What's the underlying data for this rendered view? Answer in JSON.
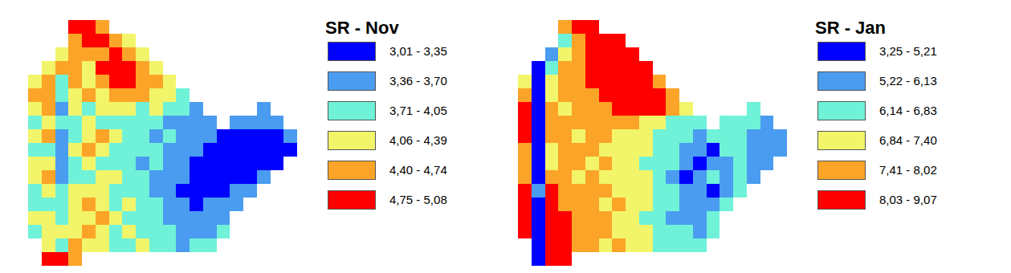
{
  "chart_data": [
    {
      "type": "heatmap",
      "title": "SR - Nov",
      "tick_labels": false,
      "classes": [
        {
          "label": "3,01 - 3,35",
          "min": 3.01,
          "max": 3.35,
          "color": "#0000ff"
        },
        {
          "label": "3,36 - 3,70",
          "min": 3.36,
          "max": 3.7,
          "color": "#4a9cf0"
        },
        {
          "label": "3,71 - 4,05",
          "min": 3.71,
          "max": 4.05,
          "color": "#6ff2d8"
        },
        {
          "label": "4,06 - 4,39",
          "min": 4.06,
          "max": 4.39,
          "color": "#f2f56a"
        },
        {
          "label": "4,40 - 4,74",
          "min": 4.4,
          "max": 4.74,
          "color": "#fca428"
        },
        {
          "label": "4,75 - 5,08",
          "min": 4.75,
          "max": 5.08,
          "color": "#ff0000"
        }
      ],
      "cells": [
        [
          null,
          null,
          null,
          4.8,
          4.9,
          4.6,
          null,
          null,
          null,
          null,
          null,
          null,
          null,
          null,
          null,
          null,
          null,
          null,
          null,
          null
        ],
        [
          null,
          null,
          null,
          4.5,
          4.9,
          4.8,
          4.5,
          4.3,
          null,
          null,
          null,
          null,
          null,
          null,
          null,
          null,
          null,
          null,
          null,
          null
        ],
        [
          null,
          null,
          4.2,
          4.6,
          4.5,
          4.7,
          4.9,
          4.5,
          4.3,
          null,
          null,
          null,
          null,
          null,
          null,
          null,
          null,
          null,
          null,
          null
        ],
        [
          null,
          4.1,
          4.5,
          4.6,
          4.3,
          4.8,
          4.9,
          5.0,
          4.6,
          4.2,
          null,
          null,
          null,
          null,
          null,
          null,
          null,
          null,
          null,
          null
        ],
        [
          4.2,
          4.4,
          4.0,
          4.5,
          4.3,
          4.6,
          4.9,
          5.0,
          4.7,
          4.5,
          4.2,
          null,
          null,
          null,
          null,
          null,
          null,
          null,
          null,
          null
        ],
        [
          4.5,
          4.7,
          3.9,
          4.2,
          4.4,
          4.3,
          4.6,
          4.7,
          4.5,
          4.3,
          4.1,
          4.0,
          null,
          null,
          null,
          null,
          null,
          null,
          null,
          null
        ],
        [
          4.3,
          4.5,
          3.6,
          4.1,
          4.0,
          4.2,
          4.3,
          4.2,
          4.0,
          4.1,
          3.9,
          3.8,
          3.7,
          null,
          null,
          null,
          null,
          3.6,
          null,
          null
        ],
        [
          4.0,
          4.2,
          3.8,
          3.9,
          4.1,
          3.9,
          4.0,
          3.8,
          3.9,
          4.0,
          3.7,
          3.6,
          3.5,
          3.6,
          null,
          3.5,
          3.6,
          3.5,
          3.4,
          null
        ],
        [
          4.2,
          4.4,
          3.5,
          4.0,
          4.2,
          4.5,
          4.1,
          3.9,
          3.8,
          3.7,
          3.8,
          3.6,
          3.5,
          3.4,
          3.3,
          3.2,
          3.2,
          3.1,
          3.2,
          3.4
        ],
        [
          4.0,
          3.9,
          3.6,
          4.1,
          4.5,
          4.3,
          4.0,
          3.8,
          3.9,
          3.8,
          3.6,
          3.5,
          3.4,
          3.2,
          3.1,
          3.1,
          3.05,
          3.1,
          3.2,
          3.3
        ],
        [
          4.1,
          4.2,
          3.5,
          3.9,
          4.2,
          4.0,
          3.9,
          4.0,
          3.7,
          3.8,
          3.6,
          3.5,
          3.3,
          3.2,
          3.1,
          3.1,
          3.2,
          3.2,
          3.3,
          null
        ],
        [
          4.3,
          4.4,
          3.7,
          4.0,
          3.9,
          4.1,
          4.2,
          3.9,
          3.8,
          3.6,
          3.5,
          3.4,
          3.2,
          3.1,
          3.2,
          3.2,
          3.3,
          3.4,
          null,
          null
        ],
        [
          4.0,
          4.1,
          3.8,
          4.2,
          4.3,
          4.1,
          4.0,
          3.8,
          3.9,
          3.7,
          3.6,
          3.3,
          3.2,
          3.2,
          3.3,
          3.4,
          3.5,
          null,
          null,
          null
        ],
        [
          3.9,
          4.0,
          3.9,
          4.3,
          4.4,
          4.2,
          4.0,
          4.1,
          3.9,
          3.8,
          3.6,
          3.5,
          3.3,
          3.4,
          3.5,
          3.6,
          null,
          null,
          null,
          null
        ],
        [
          4.1,
          4.2,
          4.0,
          4.2,
          4.3,
          4.4,
          4.1,
          3.9,
          4.0,
          3.8,
          3.7,
          3.6,
          3.5,
          3.6,
          3.7,
          null,
          null,
          null,
          null,
          null
        ],
        [
          4.0,
          4.3,
          4.1,
          4.3,
          4.5,
          4.2,
          4.0,
          4.1,
          3.9,
          3.8,
          3.8,
          3.7,
          3.6,
          3.7,
          3.8,
          null,
          null,
          null,
          null,
          null
        ],
        [
          null,
          4.2,
          4.0,
          4.4,
          4.3,
          4.1,
          4.0,
          3.9,
          4.1,
          3.9,
          3.8,
          3.7,
          3.8,
          3.9,
          null,
          null,
          null,
          null,
          null,
          null
        ],
        [
          null,
          4.8,
          5.0,
          4.7,
          null,
          null,
          null,
          null,
          null,
          null,
          null,
          null,
          null,
          null,
          null,
          null,
          null,
          null,
          null,
          null
        ]
      ]
    },
    {
      "type": "heatmap",
      "title": "SR - Jan",
      "tick_labels": false,
      "classes": [
        {
          "label": "3,25 - 5,21",
          "min": 3.25,
          "max": 5.21,
          "color": "#0000ff"
        },
        {
          "label": "5,22 - 6,13",
          "min": 5.22,
          "max": 6.13,
          "color": "#4a9cf0"
        },
        {
          "label": "6,14 - 6,83",
          "min": 6.14,
          "max": 6.83,
          "color": "#6ff2d8"
        },
        {
          "label": "6,84 - 7,40",
          "min": 6.84,
          "max": 7.4,
          "color": "#f2f56a"
        },
        {
          "label": "7,41 - 8,02",
          "min": 7.41,
          "max": 8.02,
          "color": "#fca428"
        },
        {
          "label": "8,03 - 9,07",
          "min": 8.03,
          "max": 9.07,
          "color": "#ff0000"
        }
      ],
      "cells": [
        [
          null,
          null,
          null,
          7.8,
          8.5,
          8.8,
          null,
          null,
          null,
          null,
          null,
          null,
          null,
          null,
          null,
          null,
          null,
          null,
          null,
          null
        ],
        [
          null,
          null,
          null,
          6.5,
          7.6,
          8.4,
          8.6,
          8.3,
          null,
          null,
          null,
          null,
          null,
          null,
          null,
          null,
          null,
          null,
          null,
          null
        ],
        [
          null,
          null,
          6.0,
          6.9,
          7.7,
          8.3,
          8.7,
          8.5,
          8.2,
          null,
          null,
          null,
          null,
          null,
          null,
          null,
          null,
          null,
          null,
          null
        ],
        [
          null,
          4.5,
          6.8,
          7.5,
          7.9,
          8.4,
          8.8,
          8.6,
          8.3,
          8.1,
          null,
          null,
          null,
          null,
          null,
          null,
          null,
          null,
          null,
          null
        ],
        [
          7.0,
          5.0,
          7.2,
          7.6,
          7.8,
          8.2,
          8.6,
          8.7,
          8.5,
          8.2,
          7.9,
          null,
          null,
          null,
          null,
          null,
          null,
          null,
          null,
          null
        ],
        [
          7.6,
          5.1,
          7.3,
          7.5,
          7.9,
          7.7,
          8.1,
          8.5,
          8.6,
          8.4,
          8.1,
          7.8,
          null,
          null,
          null,
          null,
          null,
          null,
          null,
          null
        ],
        [
          8.2,
          5.0,
          7.8,
          7.4,
          7.6,
          7.8,
          7.9,
          8.2,
          8.4,
          8.3,
          8.1,
          7.9,
          7.2,
          null,
          null,
          null,
          null,
          6.5,
          null,
          null
        ],
        [
          8.5,
          4.8,
          7.9,
          7.6,
          7.5,
          7.8,
          7.7,
          7.9,
          7.6,
          7.4,
          6.9,
          6.6,
          6.4,
          6.2,
          null,
          6.4,
          6.6,
          6.3,
          6.0,
          null
        ],
        [
          8.4,
          5.0,
          7.7,
          7.5,
          7.3,
          7.8,
          7.6,
          7.4,
          7.2,
          7.0,
          6.8,
          6.5,
          6.3,
          6.0,
          6.2,
          6.5,
          6.4,
          6.1,
          5.9,
          6.0
        ],
        [
          7.9,
          5.2,
          7.4,
          7.6,
          7.8,
          7.5,
          7.3,
          7.1,
          7.4,
          7.0,
          6.6,
          6.4,
          6.1,
          5.8,
          5.0,
          6.2,
          6.4,
          6.0,
          5.6,
          5.9
        ],
        [
          7.6,
          5.0,
          7.2,
          7.8,
          7.6,
          7.4,
          7.5,
          7.2,
          7.0,
          6.7,
          6.5,
          6.2,
          5.6,
          4.9,
          5.8,
          6.1,
          6.3,
          5.9,
          5.7,
          null
        ],
        [
          8.0,
          5.1,
          7.5,
          7.7,
          7.4,
          7.6,
          7.3,
          7.4,
          7.1,
          6.9,
          6.4,
          6.0,
          5.2,
          5.9,
          6.2,
          6.0,
          6.3,
          6.1,
          null,
          null
        ],
        [
          8.3,
          5.3,
          8.1,
          7.6,
          7.8,
          7.5,
          7.7,
          7.2,
          7.3,
          7.0,
          6.6,
          6.3,
          5.7,
          6.0,
          5.2,
          6.1,
          6.4,
          null,
          null,
          null
        ],
        [
          8.5,
          5.2,
          8.4,
          7.9,
          7.6,
          7.8,
          7.4,
          7.5,
          7.2,
          6.9,
          6.7,
          6.2,
          6.0,
          5.4,
          5.9,
          6.2,
          null,
          null,
          null,
          null
        ],
        [
          8.6,
          5.0,
          8.5,
          8.2,
          7.7,
          7.5,
          7.6,
          7.3,
          7.1,
          6.8,
          6.5,
          6.1,
          5.8,
          6.0,
          6.3,
          null,
          null,
          null,
          null,
          null
        ],
        [
          8.4,
          4.9,
          8.7,
          8.3,
          7.9,
          7.6,
          7.8,
          7.4,
          7.2,
          7.0,
          6.6,
          6.4,
          6.2,
          6.1,
          6.4,
          null,
          null,
          null,
          null,
          null
        ],
        [
          null,
          5.1,
          8.6,
          8.2,
          7.8,
          7.5,
          7.3,
          7.6,
          7.1,
          6.9,
          6.7,
          6.5,
          6.3,
          6.2,
          null,
          null,
          null,
          null,
          null,
          null
        ],
        [
          null,
          5.0,
          8.4,
          8.2,
          null,
          null,
          null,
          null,
          null,
          null,
          null,
          null,
          null,
          null,
          null,
          null,
          null,
          null,
          null,
          null
        ]
      ]
    }
  ]
}
